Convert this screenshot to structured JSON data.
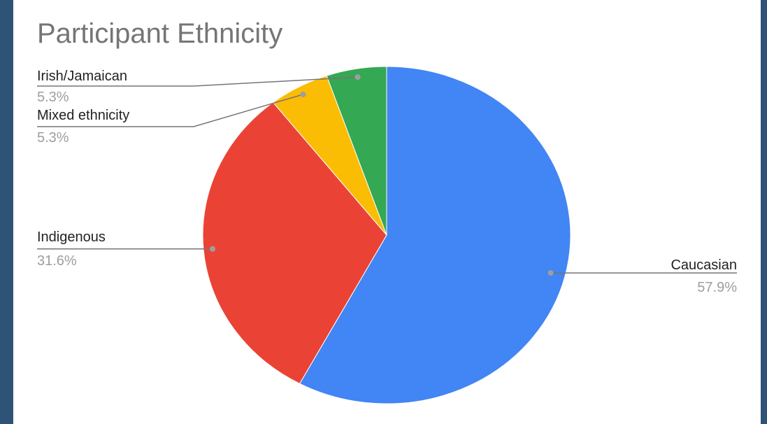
{
  "chart_data": {
    "type": "pie",
    "title": "Participant Ethnicity",
    "slices": [
      {
        "label": "Caucasian",
        "percent_label": "57.9%",
        "value": 57.9,
        "color": "#4285f4"
      },
      {
        "label": "Indigenous",
        "percent_label": "31.6%",
        "value": 31.6,
        "color": "#ea4335"
      },
      {
        "label": "Mixed ethnicity",
        "percent_label": "5.3%",
        "value": 5.3,
        "color": "#fbbc04"
      },
      {
        "label": "Irish/Jamaican",
        "percent_label": "5.3%",
        "value": 5.3,
        "color": "#34a853"
      }
    ]
  }
}
